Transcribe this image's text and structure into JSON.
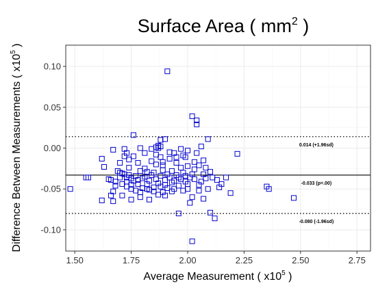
{
  "chart_data": {
    "type": "scatter",
    "title": "Surface Area ( mm",
    "title_sup": "2",
    "title_suffix": " )",
    "xlabel": "Average Measurement ( x10",
    "xlabel_sup": "5",
    "xlabel_suffix": " )",
    "ylabel": "Difference Between Measurements ( x10",
    "ylabel_sup": "5",
    "ylabel_suffix": " )",
    "xlim": [
      1.46,
      2.81
    ],
    "ylim": [
      -0.126,
      0.126
    ],
    "x_ticks": [
      1.5,
      1.75,
      2.0,
      2.25,
      2.5,
      2.75
    ],
    "x_tick_labels": [
      "1.50",
      "1.75",
      "2.00",
      "2.25",
      "2.50",
      "2.75"
    ],
    "y_ticks": [
      -0.1,
      -0.05,
      0.0,
      0.05,
      0.1
    ],
    "y_tick_labels": [
      "-0.10",
      "-0.05",
      "0.00",
      "0.05",
      "0.10"
    ],
    "grid": true,
    "marker": "open-square",
    "point_color": "#0000cc",
    "reference_lines": [
      {
        "y": 0.014,
        "style": "dotted",
        "label": "0.014 (+1.96sd)"
      },
      {
        "y": -0.033,
        "style": "solid",
        "label": "-0.033 (p=.00)"
      },
      {
        "y": -0.08,
        "style": "dotted",
        "label": "-0.080 (-1.96sd)"
      }
    ],
    "points": [
      [
        1.48,
        -0.05
      ],
      [
        1.55,
        -0.036
      ],
      [
        1.56,
        -0.036
      ],
      [
        1.62,
        -0.064
      ],
      [
        1.62,
        -0.013
      ],
      [
        1.63,
        -0.023
      ],
      [
        1.65,
        -0.038
      ],
      [
        1.66,
        -0.039
      ],
      [
        1.66,
        -0.058
      ],
      [
        1.67,
        -0.002
      ],
      [
        1.67,
        -0.053
      ],
      [
        1.67,
        -0.065
      ],
      [
        1.68,
        -0.041
      ],
      [
        1.68,
        -0.046
      ],
      [
        1.69,
        -0.028
      ],
      [
        1.7,
        -0.018
      ],
      [
        1.7,
        -0.03
      ],
      [
        1.7,
        -0.036
      ],
      [
        1.71,
        -0.031
      ],
      [
        1.71,
        -0.044
      ],
      [
        1.71,
        -0.058
      ],
      [
        1.72,
        -0.001
      ],
      [
        1.72,
        -0.01
      ],
      [
        1.72,
        -0.032
      ],
      [
        1.73,
        -0.006
      ],
      [
        1.73,
        -0.036
      ],
      [
        1.73,
        -0.041
      ],
      [
        1.73,
        -0.047
      ],
      [
        1.74,
        -0.014
      ],
      [
        1.74,
        -0.024
      ],
      [
        1.74,
        -0.033
      ],
      [
        1.75,
        -0.037
      ],
      [
        1.75,
        -0.045
      ],
      [
        1.75,
        -0.05
      ],
      [
        1.75,
        -0.063
      ],
      [
        1.76,
        -0.01
      ],
      [
        1.76,
        -0.04
      ],
      [
        1.76,
        0.016
      ],
      [
        1.77,
        -0.034
      ],
      [
        1.77,
        -0.052
      ],
      [
        1.78,
        -0.018
      ],
      [
        1.78,
        -0.039
      ],
      [
        1.78,
        -0.044
      ],
      [
        1.79,
        -0.028
      ],
      [
        1.79,
        -0.054
      ],
      [
        1.79,
        -0.06
      ],
      [
        1.79,
        0.0
      ],
      [
        1.8,
        -0.037
      ],
      [
        1.8,
        -0.049
      ],
      [
        1.81,
        -0.006
      ],
      [
        1.81,
        -0.025
      ],
      [
        1.81,
        -0.035
      ],
      [
        1.82,
        -0.029
      ],
      [
        1.82,
        -0.044
      ],
      [
        1.82,
        -0.05
      ],
      [
        1.83,
        -0.04
      ],
      [
        1.83,
        -0.051
      ],
      [
        1.83,
        -0.063
      ],
      [
        1.84,
        -0.001
      ],
      [
        1.84,
        -0.016
      ],
      [
        1.84,
        -0.033
      ],
      [
        1.85,
        -0.048
      ],
      [
        1.85,
        -0.03
      ],
      [
        1.85,
        -0.053
      ],
      [
        1.86,
        0.001
      ],
      [
        1.86,
        -0.008
      ],
      [
        1.86,
        -0.02
      ],
      [
        1.86,
        -0.038
      ],
      [
        1.87,
        -0.043
      ],
      [
        1.87,
        -0.057
      ],
      [
        1.87,
        0.0
      ],
      [
        1.87,
        0.003
      ],
      [
        1.88,
        -0.011
      ],
      [
        1.88,
        -0.034
      ],
      [
        1.88,
        -0.047
      ],
      [
        1.88,
        0.01
      ],
      [
        1.88,
        0.002
      ],
      [
        1.89,
        -0.017
      ],
      [
        1.89,
        -0.027
      ],
      [
        1.89,
        -0.054
      ],
      [
        1.89,
        -0.021
      ],
      [
        1.9,
        -0.039
      ],
      [
        1.9,
        -0.045
      ],
      [
        1.9,
        -0.058
      ],
      [
        1.9,
        0.011
      ],
      [
        1.91,
        -0.032
      ],
      [
        1.91,
        -0.049
      ],
      [
        1.91,
        0.094
      ],
      [
        1.92,
        -0.005
      ],
      [
        1.92,
        -0.013
      ],
      [
        1.92,
        -0.036
      ],
      [
        1.93,
        -0.028
      ],
      [
        1.93,
        -0.053
      ],
      [
        1.93,
        -0.042
      ],
      [
        1.94,
        -0.006
      ],
      [
        1.94,
        -0.04
      ],
      [
        1.94,
        -0.05
      ],
      [
        1.95,
        -0.011
      ],
      [
        1.95,
        -0.033
      ],
      [
        1.95,
        -0.018
      ],
      [
        1.96,
        -0.08
      ],
      [
        1.96,
        -0.036
      ],
      [
        1.96,
        -0.046
      ],
      [
        1.97,
        -0.001
      ],
      [
        1.97,
        -0.024
      ],
      [
        1.97,
        -0.038
      ],
      [
        1.98,
        -0.03
      ],
      [
        1.98,
        -0.052
      ],
      [
        1.98,
        -0.009
      ],
      [
        1.99,
        -0.034
      ],
      [
        1.99,
        -0.041
      ],
      [
        1.99,
        -0.011
      ],
      [
        2.0,
        -0.003
      ],
      [
        2.0,
        -0.022
      ],
      [
        2.0,
        -0.044
      ],
      [
        2.0,
        -0.05
      ],
      [
        2.01,
        -0.036
      ],
      [
        2.01,
        -0.067
      ],
      [
        2.02,
        0.039
      ],
      [
        2.02,
        -0.032
      ],
      [
        2.02,
        -0.114
      ],
      [
        2.02,
        -0.06
      ],
      [
        2.03,
        -0.017
      ],
      [
        2.03,
        -0.026
      ],
      [
        2.03,
        -0.038
      ],
      [
        2.04,
        0.034
      ],
      [
        2.04,
        0.029
      ],
      [
        2.04,
        -0.006
      ],
      [
        2.05,
        -0.021
      ],
      [
        2.05,
        -0.045
      ],
      [
        2.05,
        -0.052
      ],
      [
        2.06,
        0.002
      ],
      [
        2.06,
        -0.041
      ],
      [
        2.07,
        -0.015
      ],
      [
        2.07,
        -0.032
      ],
      [
        2.07,
        -0.062
      ],
      [
        2.08,
        -0.024
      ],
      [
        2.08,
        -0.037
      ],
      [
        2.09,
        0.011
      ],
      [
        2.09,
        -0.05
      ],
      [
        2.1,
        -0.079
      ],
      [
        2.1,
        -0.029
      ],
      [
        2.11,
        -0.036
      ],
      [
        2.12,
        -0.086
      ],
      [
        2.13,
        -0.039
      ],
      [
        2.14,
        -0.048
      ],
      [
        2.15,
        -0.044
      ],
      [
        2.17,
        -0.036
      ],
      [
        2.19,
        -0.055
      ],
      [
        2.22,
        -0.007
      ],
      [
        2.35,
        -0.047
      ],
      [
        2.36,
        -0.05
      ],
      [
        2.47,
        -0.061
      ]
    ]
  }
}
